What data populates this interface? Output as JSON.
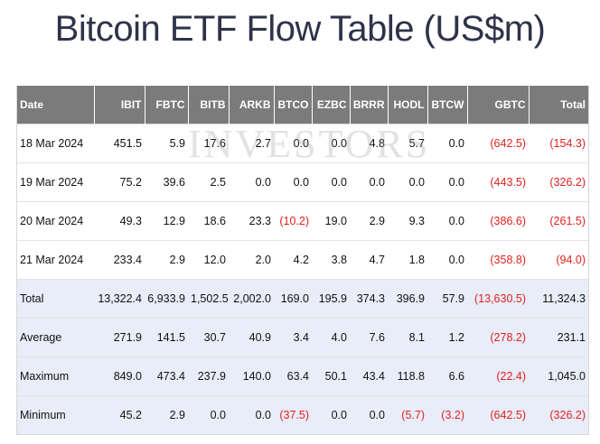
{
  "title": "Bitcoin ETF Flow Table (US$m)",
  "watermark": "INVESTORS",
  "colors": {
    "header_bg": "#7b7b7b",
    "summary_bg": "#e9edf8",
    "negative": "#e02020"
  },
  "columns": [
    "Date",
    "IBIT",
    "FBTC",
    "BITB",
    "ARKB",
    "BTCO",
    "EZBC",
    "BRRR",
    "HODL",
    "BTCW",
    "GBTC",
    "Total"
  ],
  "rows": [
    {
      "cells": [
        "18 Mar 2024",
        "451.5",
        "5.9",
        "17.6",
        "2.7",
        "0.0",
        "0.0",
        "4.8",
        "5.7",
        "0.0",
        "(642.5)",
        "(154.3)"
      ],
      "summary": false
    },
    {
      "cells": [
        "19 Mar 2024",
        "75.2",
        "39.6",
        "2.5",
        "0.0",
        "0.0",
        "0.0",
        "0.0",
        "0.0",
        "0.0",
        "(443.5)",
        "(326.2)"
      ],
      "summary": false
    },
    {
      "cells": [
        "20 Mar 2024",
        "49.3",
        "12.9",
        "18.6",
        "23.3",
        "(10.2)",
        "19.0",
        "2.9",
        "9.3",
        "0.0",
        "(386.6)",
        "(261.5)"
      ],
      "summary": false
    },
    {
      "cells": [
        "21 Mar 2024",
        "233.4",
        "2.9",
        "12.0",
        "2.0",
        "4.2",
        "3.8",
        "4.7",
        "1.8",
        "0.0",
        "(358.8)",
        "(94.0)"
      ],
      "summary": false
    },
    {
      "cells": [
        "Total",
        "13,322.4",
        "6,933.9",
        "1,502.5",
        "2,002.0",
        "169.0",
        "195.9",
        "374.3",
        "396.9",
        "57.9",
        "(13,630.5)",
        "11,324.3"
      ],
      "summary": true
    },
    {
      "cells": [
        "Average",
        "271.9",
        "141.5",
        "30.7",
        "40.9",
        "3.4",
        "4.0",
        "7.6",
        "8.1",
        "1.2",
        "(278.2)",
        "231.1"
      ],
      "summary": true
    },
    {
      "cells": [
        "Maximum",
        "849.0",
        "473.4",
        "237.9",
        "140.0",
        "63.4",
        "50.1",
        "43.4",
        "118.8",
        "6.6",
        "(22.4)",
        "1,045.0"
      ],
      "summary": true
    },
    {
      "cells": [
        "Minimum",
        "45.2",
        "2.9",
        "0.0",
        "0.0",
        "(37.5)",
        "0.0",
        "0.0",
        "(5.7)",
        "(3.2)",
        "(642.5)",
        "(326.2)"
      ],
      "summary": true
    }
  ]
}
